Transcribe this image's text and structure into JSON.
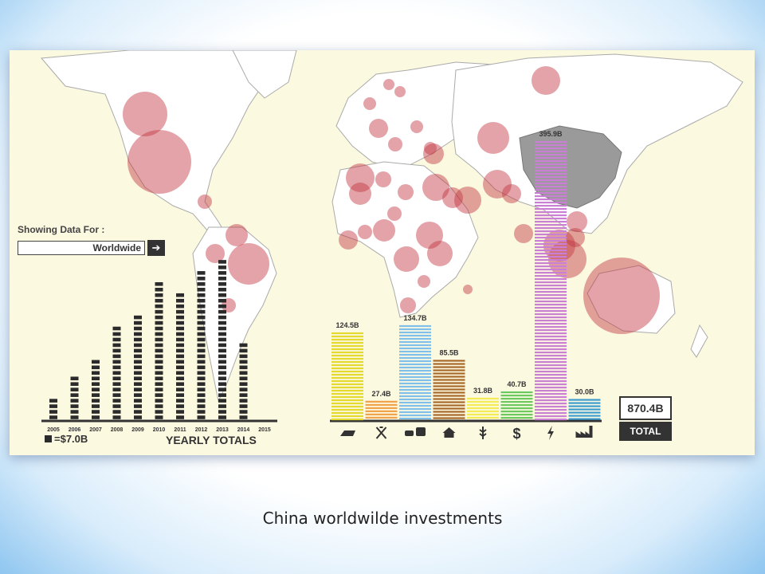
{
  "caption": "China worldwilde investments",
  "colors": {
    "bubble": "#c0333d",
    "china": "#9a9a9a",
    "map_land": "#ffffff"
  },
  "showing": {
    "label": "Showing Data For :",
    "value": "Worldwide"
  },
  "chart_data": [
    {
      "type": "bar",
      "title": "YEARLY TOTALS",
      "legend_note": "=$7.0B",
      "legend_unit": 7.0,
      "categories": [
        "2005",
        "2006",
        "2007",
        "2008",
        "2009",
        "2010",
        "2011",
        "2012",
        "2013",
        "2014",
        "2015"
      ],
      "values": [
        4,
        8,
        11,
        17,
        19,
        25,
        23,
        27,
        29,
        14,
        0
      ]
    },
    {
      "type": "bar",
      "title": "",
      "categories": [
        "metals-icon",
        "mining-icon",
        "transport-icon",
        "real-estate-icon",
        "agriculture-icon",
        "finance-icon",
        "energy-icon",
        "industry-icon"
      ],
      "values": [
        124.5,
        27.4,
        134.7,
        85.5,
        31.8,
        40.7,
        395.9,
        30.0
      ],
      "labels": [
        "124.5B",
        "27.4B",
        "134.7B",
        "85.5B",
        "31.8B",
        "40.7B",
        "395.9B",
        "30.0B"
      ],
      "colors": [
        "#e3da2e",
        "#f2a24a",
        "#7fc0ea",
        "#a9682a",
        "#f3ec55",
        "#69c95c",
        "#c97fd4",
        "#3d9ccf"
      ]
    }
  ],
  "total": {
    "value": "870.4B",
    "label": "TOTAL"
  }
}
